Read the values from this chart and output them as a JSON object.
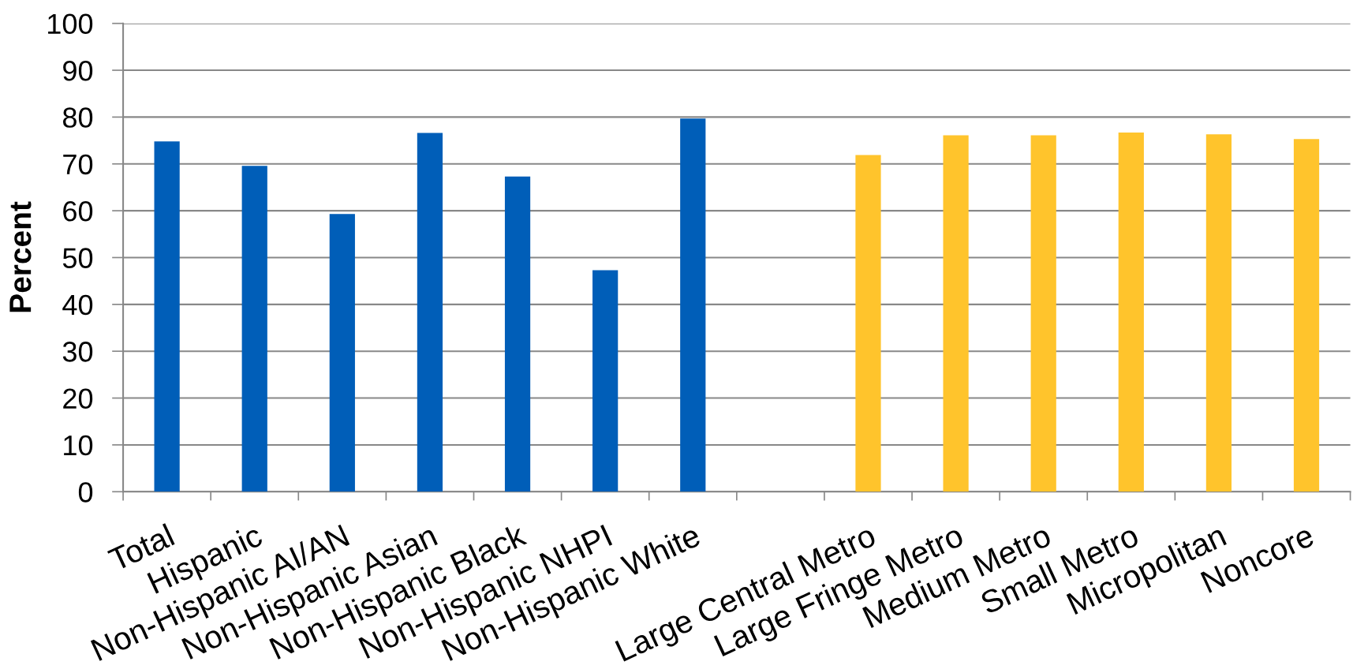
{
  "chart_data": {
    "type": "bar",
    "ylabel": "Percent",
    "categories": [
      "Total",
      "Hispanic",
      "Non-Hispanic AI/AN",
      "Non-Hispanic Asian",
      "Non-Hispanic Black",
      "Non-Hispanic NHPI",
      "Non-Hispanic White",
      null,
      "Large Central Metro",
      "Large Fringe Metro",
      "Medium Metro",
      "Small Metro",
      "Micropolitan",
      "Noncore"
    ],
    "values": [
      74.8,
      69.6,
      59.3,
      76.6,
      67.3,
      47.3,
      79.7,
      null,
      71.9,
      76.1,
      76.1,
      76.7,
      76.3,
      75.3
    ],
    "colors": [
      "#005eb8",
      "#005eb8",
      "#005eb8",
      "#005eb8",
      "#005eb8",
      "#005eb8",
      "#005eb8",
      null,
      "#ffc42c",
      "#ffc42c",
      "#ffc42c",
      "#ffc42c",
      "#ffc42c",
      "#ffc42c"
    ],
    "ylim": [
      0,
      100
    ],
    "yticks": [
      0,
      10,
      20,
      30,
      40,
      50,
      60,
      70,
      80,
      90,
      100
    ],
    "grid": "y"
  }
}
